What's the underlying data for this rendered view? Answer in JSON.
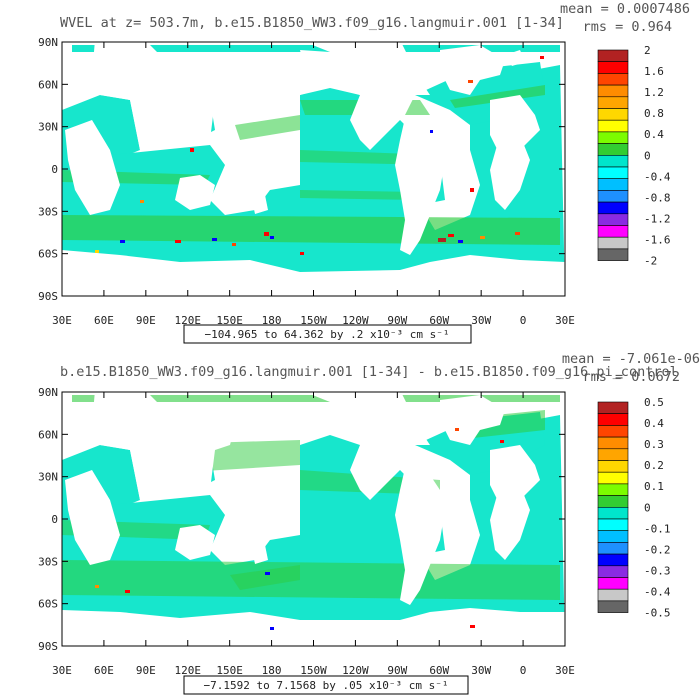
{
  "colors": {
    "land": "#ffffff",
    "frame": "#000000",
    "colorbar": [
      "#666666",
      "#c8c8c8",
      "#ff00ff",
      "#8a2be2",
      "#0000ff",
      "#1e90ff",
      "#00bfff",
      "#00ffff",
      "#00e5cc",
      "#32cd32",
      "#7cfc00",
      "#ffff00",
      "#ffd700",
      "#ffa500",
      "#ff8c00",
      "#ff4500",
      "#ff0000",
      "#b22222"
    ]
  },
  "chart_data": [
    {
      "type": "heatmap",
      "title": "WVEL at z= 503.7m, b.e15.B1850_WW3.f09_g16.langmuir.001 [1-34]",
      "stats": {
        "mean": "mean = 0.0007486",
        "rms": "rms = 0.964"
      },
      "ylabels": [
        "90N",
        "60N",
        "30N",
        "0",
        "30S",
        "60S",
        "90S"
      ],
      "xlabels": [
        "30E",
        "60E",
        "90E",
        "120E",
        "150E",
        "180",
        "150W",
        "120W",
        "90W",
        "60W",
        "30W",
        "0",
        "30E"
      ],
      "colorbar_labels": [
        "2",
        "1.6",
        "1.2",
        "0.8",
        "0.4",
        "0",
        "-0.4",
        "-0.8",
        "-1.2",
        "-1.6",
        "-2"
      ],
      "range_text": "−104.965 to 64.362 by .2 x10⁻³ cm s⁻¹",
      "dominant_level": 0,
      "legend_position": "right"
    },
    {
      "type": "heatmap",
      "title": "b.e15.B1850_WW3.f09_g16.langmuir.001 [1-34] - b.e15.B1850.f09_g16.pi_control",
      "stats": {
        "mean": "mean = -7.061e-06",
        "rms": "rms = 0.0672"
      },
      "ylabels": [
        "90N",
        "60N",
        "30N",
        "0",
        "30S",
        "60S",
        "90S"
      ],
      "xlabels": [
        "30E",
        "60E",
        "90E",
        "120E",
        "150E",
        "180",
        "150W",
        "120W",
        "90W",
        "60W",
        "30W",
        "0",
        "30E"
      ],
      "colorbar_labels": [
        "0.5",
        "0.4",
        "0.3",
        "0.2",
        "0.1",
        "0",
        "-0.1",
        "-0.2",
        "-0.3",
        "-0.4",
        "-0.5"
      ],
      "range_text": "−7.1592 to 7.1568 by .05 x10⁻³ cm s⁻¹",
      "dominant_level": 0,
      "legend_position": "right"
    }
  ]
}
